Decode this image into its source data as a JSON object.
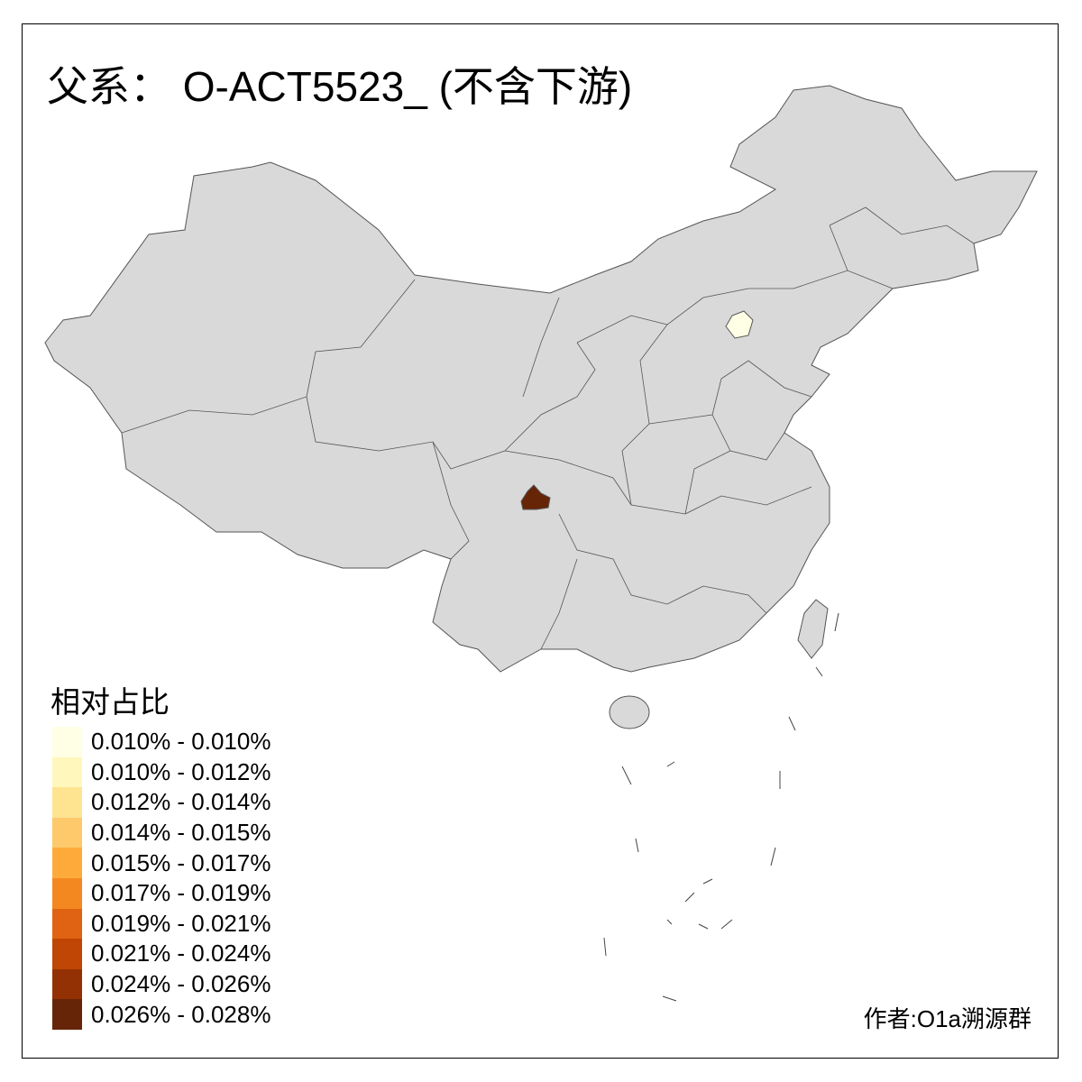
{
  "title": "父系： O-ACT5523_ (不含下游)",
  "legend": {
    "title": "相对占比",
    "items": [
      {
        "label": "0.010% - 0.010%",
        "color": "#FFFFE5"
      },
      {
        "label": "0.010% - 0.012%",
        "color": "#FFF7BC"
      },
      {
        "label": "0.012% - 0.014%",
        "color": "#FEE391"
      },
      {
        "label": "0.014% - 0.015%",
        "color": "#FEC96A"
      },
      {
        "label": "0.015% - 0.017%",
        "color": "#FEAA3A"
      },
      {
        "label": "0.017% - 0.019%",
        "color": "#F48820"
      },
      {
        "label": "0.019% - 0.021%",
        "color": "#DF6312"
      },
      {
        "label": "0.021% - 0.024%",
        "color": "#BF4604"
      },
      {
        "label": "0.024% - 0.026%",
        "color": "#943104"
      },
      {
        "label": "0.026% - 0.028%",
        "color": "#662506"
      }
    ]
  },
  "colors": {
    "no_data": "#D9D9D9",
    "border": "#555555"
  },
  "highlighted_regions": [
    {
      "region": "Beijing",
      "color": "#FFFFE5"
    },
    {
      "region": "Chengdu",
      "color": "#662506"
    }
  ],
  "credit": "作者:O1a溯源群"
}
